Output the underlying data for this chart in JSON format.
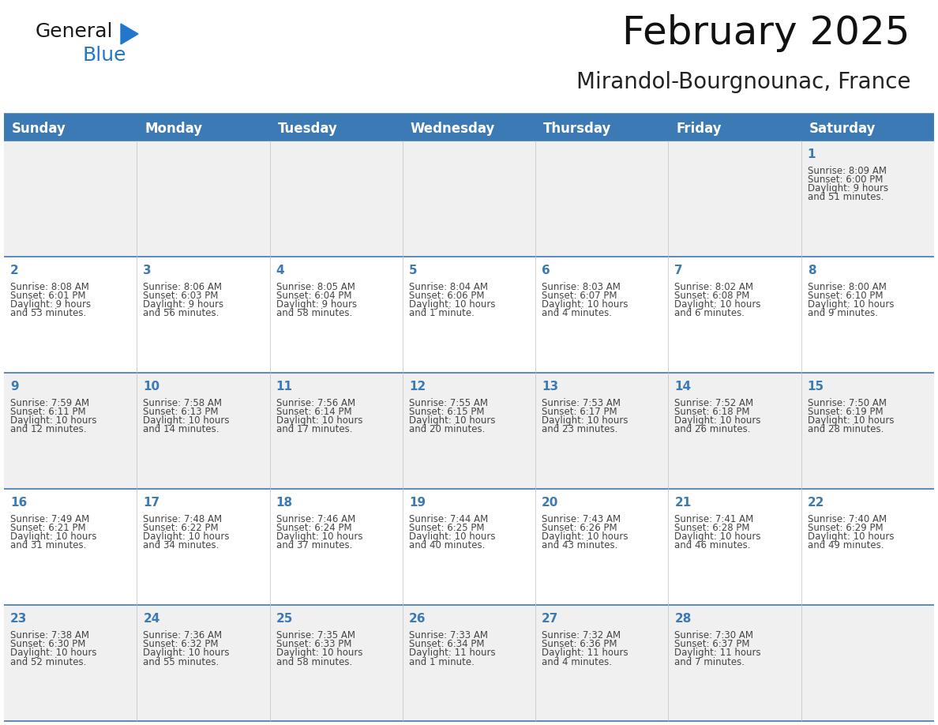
{
  "title": "February 2025",
  "subtitle": "Mirandol-Bourgnounac, France",
  "header_bg": "#3c7ab5",
  "header_text_color": "#ffffff",
  "row_bg_light": "#f0f0f0",
  "row_bg_white": "#ffffff",
  "separator_color": "#3c7ab5",
  "grid_color": "#c0c0c0",
  "day_headers": [
    "Sunday",
    "Monday",
    "Tuesday",
    "Wednesday",
    "Thursday",
    "Friday",
    "Saturday"
  ],
  "days": [
    {
      "day": 1,
      "col": 6,
      "row": 0,
      "sunrise": "8:09 AM",
      "sunset": "6:00 PM",
      "daylight": "9 hours and 51 minutes."
    },
    {
      "day": 2,
      "col": 0,
      "row": 1,
      "sunrise": "8:08 AM",
      "sunset": "6:01 PM",
      "daylight": "9 hours and 53 minutes."
    },
    {
      "day": 3,
      "col": 1,
      "row": 1,
      "sunrise": "8:06 AM",
      "sunset": "6:03 PM",
      "daylight": "9 hours and 56 minutes."
    },
    {
      "day": 4,
      "col": 2,
      "row": 1,
      "sunrise": "8:05 AM",
      "sunset": "6:04 PM",
      "daylight": "9 hours and 58 minutes."
    },
    {
      "day": 5,
      "col": 3,
      "row": 1,
      "sunrise": "8:04 AM",
      "sunset": "6:06 PM",
      "daylight": "10 hours and 1 minute."
    },
    {
      "day": 6,
      "col": 4,
      "row": 1,
      "sunrise": "8:03 AM",
      "sunset": "6:07 PM",
      "daylight": "10 hours and 4 minutes."
    },
    {
      "day": 7,
      "col": 5,
      "row": 1,
      "sunrise": "8:02 AM",
      "sunset": "6:08 PM",
      "daylight": "10 hours and 6 minutes."
    },
    {
      "day": 8,
      "col": 6,
      "row": 1,
      "sunrise": "8:00 AM",
      "sunset": "6:10 PM",
      "daylight": "10 hours and 9 minutes."
    },
    {
      "day": 9,
      "col": 0,
      "row": 2,
      "sunrise": "7:59 AM",
      "sunset": "6:11 PM",
      "daylight": "10 hours and 12 minutes."
    },
    {
      "day": 10,
      "col": 1,
      "row": 2,
      "sunrise": "7:58 AM",
      "sunset": "6:13 PM",
      "daylight": "10 hours and 14 minutes."
    },
    {
      "day": 11,
      "col": 2,
      "row": 2,
      "sunrise": "7:56 AM",
      "sunset": "6:14 PM",
      "daylight": "10 hours and 17 minutes."
    },
    {
      "day": 12,
      "col": 3,
      "row": 2,
      "sunrise": "7:55 AM",
      "sunset": "6:15 PM",
      "daylight": "10 hours and 20 minutes."
    },
    {
      "day": 13,
      "col": 4,
      "row": 2,
      "sunrise": "7:53 AM",
      "sunset": "6:17 PM",
      "daylight": "10 hours and 23 minutes."
    },
    {
      "day": 14,
      "col": 5,
      "row": 2,
      "sunrise": "7:52 AM",
      "sunset": "6:18 PM",
      "daylight": "10 hours and 26 minutes."
    },
    {
      "day": 15,
      "col": 6,
      "row": 2,
      "sunrise": "7:50 AM",
      "sunset": "6:19 PM",
      "daylight": "10 hours and 28 minutes."
    },
    {
      "day": 16,
      "col": 0,
      "row": 3,
      "sunrise": "7:49 AM",
      "sunset": "6:21 PM",
      "daylight": "10 hours and 31 minutes."
    },
    {
      "day": 17,
      "col": 1,
      "row": 3,
      "sunrise": "7:48 AM",
      "sunset": "6:22 PM",
      "daylight": "10 hours and 34 minutes."
    },
    {
      "day": 18,
      "col": 2,
      "row": 3,
      "sunrise": "7:46 AM",
      "sunset": "6:24 PM",
      "daylight": "10 hours and 37 minutes."
    },
    {
      "day": 19,
      "col": 3,
      "row": 3,
      "sunrise": "7:44 AM",
      "sunset": "6:25 PM",
      "daylight": "10 hours and 40 minutes."
    },
    {
      "day": 20,
      "col": 4,
      "row": 3,
      "sunrise": "7:43 AM",
      "sunset": "6:26 PM",
      "daylight": "10 hours and 43 minutes."
    },
    {
      "day": 21,
      "col": 5,
      "row": 3,
      "sunrise": "7:41 AM",
      "sunset": "6:28 PM",
      "daylight": "10 hours and 46 minutes."
    },
    {
      "day": 22,
      "col": 6,
      "row": 3,
      "sunrise": "7:40 AM",
      "sunset": "6:29 PM",
      "daylight": "10 hours and 49 minutes."
    },
    {
      "day": 23,
      "col": 0,
      "row": 4,
      "sunrise": "7:38 AM",
      "sunset": "6:30 PM",
      "daylight": "10 hours and 52 minutes."
    },
    {
      "day": 24,
      "col": 1,
      "row": 4,
      "sunrise": "7:36 AM",
      "sunset": "6:32 PM",
      "daylight": "10 hours and 55 minutes."
    },
    {
      "day": 25,
      "col": 2,
      "row": 4,
      "sunrise": "7:35 AM",
      "sunset": "6:33 PM",
      "daylight": "10 hours and 58 minutes."
    },
    {
      "day": 26,
      "col": 3,
      "row": 4,
      "sunrise": "7:33 AM",
      "sunset": "6:34 PM",
      "daylight": "11 hours and 1 minute."
    },
    {
      "day": 27,
      "col": 4,
      "row": 4,
      "sunrise": "7:32 AM",
      "sunset": "6:36 PM",
      "daylight": "11 hours and 4 minutes."
    },
    {
      "day": 28,
      "col": 5,
      "row": 4,
      "sunrise": "7:30 AM",
      "sunset": "6:37 PM",
      "daylight": "11 hours and 7 minutes."
    }
  ],
  "num_rows": 5,
  "num_cols": 7,
  "title_fontsize": 36,
  "subtitle_fontsize": 20,
  "header_fontsize": 12,
  "day_num_fontsize": 11,
  "cell_fontsize": 8.5,
  "logo_text_color_general": "#1a1a1a",
  "logo_text_color_blue": "#2277cc"
}
